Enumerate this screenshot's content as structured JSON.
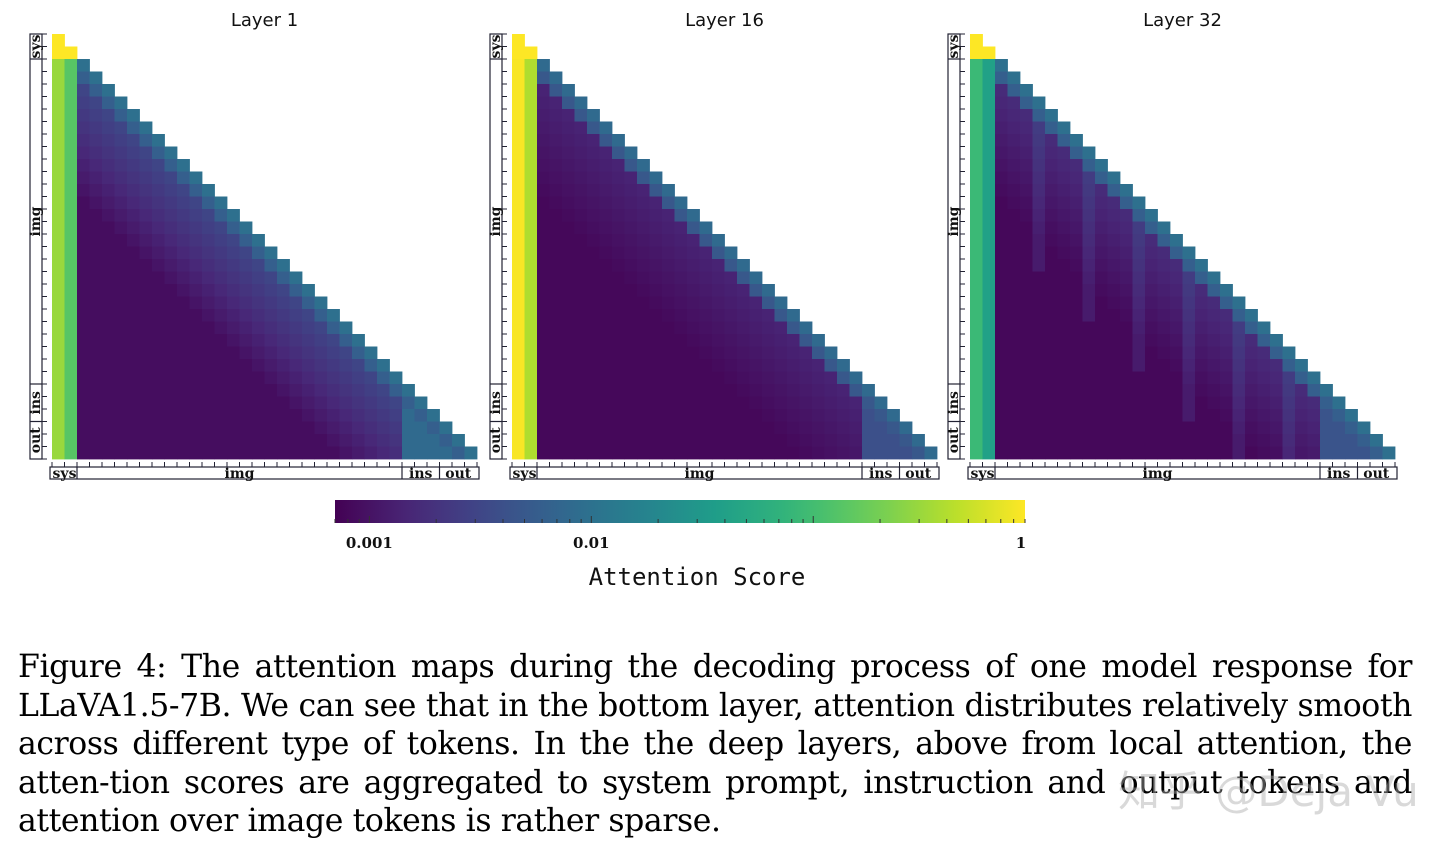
{
  "figure": {
    "caption": "Figure 4: The attention maps during the decoding process of one model response for LLaVA1.5-7B. We can see that in the bottom layer, attention distributes relatively smooth across different type of tokens. In the the deep layers, above from local attention, the atten-tion scores are aggregated to system prompt, instruction and output tokens and attention over image tokens is rather sparse.",
    "watermark": "知乎 @Deja Vu"
  },
  "chart_data": {
    "type": "heatmap",
    "colormap": "viridis",
    "scale": "log",
    "colorbar": {
      "label": "Attention Score",
      "ticks": [
        {
          "value": 0.001,
          "label": "0.001"
        },
        {
          "value": 0.01,
          "label": "0.01"
        },
        {
          "value": 1,
          "label": "1"
        }
      ],
      "range": [
        0.0007,
        0.9
      ]
    },
    "grid_size": 34,
    "token_segments": [
      {
        "label": "sys",
        "start": 0,
        "end": 2
      },
      {
        "label": "img",
        "start": 2,
        "end": 28
      },
      {
        "label": "ins",
        "start": 28,
        "end": 31
      },
      {
        "label": "out",
        "start": 31,
        "end": 34
      }
    ],
    "panels": [
      {
        "title": "Layer 1",
        "description": "smooth attention across token types",
        "sys_attention": 0.3,
        "diagonal_attention": 0.006,
        "image_attention_near": 0.0035,
        "image_attention_far": 0.0009,
        "ins_out_attention": 0.008,
        "sparse_strips": false
      },
      {
        "title": "Layer 16",
        "description": "attention concentrated on system prompt and local tokens",
        "sys_attention": 0.85,
        "diagonal_attention": 0.005,
        "image_attention_near": 0.0015,
        "image_attention_far": 0.0008,
        "ins_out_attention": 0.004,
        "sparse_strips": false
      },
      {
        "title": "Layer 32",
        "description": "attention aggregated to sys, ins and out tokens; sparse over image",
        "sys_attention": 0.09,
        "diagonal_attention": 0.006,
        "image_attention_near": 0.0018,
        "image_attention_far": 0.0008,
        "ins_out_attention": 0.0045,
        "sparse_strips": true
      }
    ]
  }
}
